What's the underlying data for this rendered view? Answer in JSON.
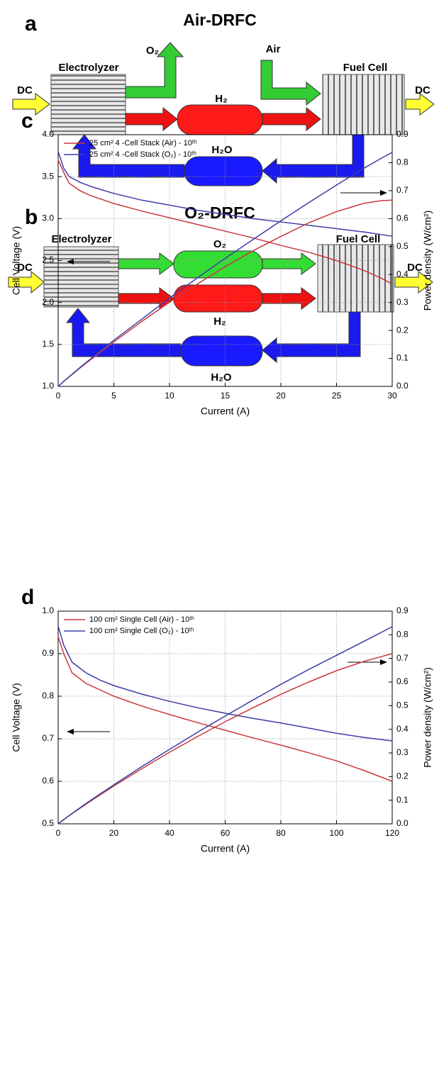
{
  "diagrams": [
    {
      "label": "a",
      "title": "Air-DRFC",
      "electrolyzer": "Electrolyzer",
      "fuel_cell": "Fuel Cell",
      "dc_in": "DC",
      "dc_out": "DC",
      "oxygen": "O₂",
      "air": "Air",
      "hydrogen": "H₂",
      "water": "H₂O"
    },
    {
      "label": "b",
      "title": "O₂-DRFC",
      "electrolyzer": "Electrolyzer",
      "fuel_cell": "Fuel Cell",
      "dc_in": "DC",
      "dc_out": "DC",
      "oxygen": "O₂",
      "hydrogen": "H₂",
      "water": "H₂O"
    }
  ],
  "chart_data": [
    {
      "type": "line",
      "label": "c",
      "x_label": "Current (A)",
      "y_label": "Cell Voltage (V)",
      "y2_label": "Power density (W/cm²)",
      "x": [
        0,
        0.5,
        1,
        2,
        3,
        5,
        7.5,
        10,
        12.5,
        15,
        17.5,
        20,
        22.5,
        25,
        27.5,
        29,
        30
      ],
      "xlim": [
        0,
        30
      ],
      "xticks": [
        0,
        5,
        10,
        15,
        20,
        25,
        30
      ],
      "ylim": [
        1,
        4
      ],
      "yticks": [
        {
          "value": 1,
          "label": "1.0"
        },
        1.5,
        {
          "value": 2,
          "label": "2.0"
        },
        2.5,
        {
          "value": 3,
          "label": "3.0"
        },
        3.5,
        {
          "value": 4,
          "label": "4.0"
        }
      ],
      "y2lim": [
        0,
        0.9
      ],
      "y2ticks": [
        {
          "value": 0,
          "label": "0.0"
        },
        0.1,
        0.2,
        0.3,
        0.4,
        0.5,
        0.6,
        0.7,
        0.8,
        0.9
      ],
      "grid": true,
      "legend": "upper left",
      "series": [
        {
          "name": "25 cm² 4 -Cell Stack (Air) - 10ᵗʰ",
          "color": "#c8383c",
          "values": [
            3.7,
            3.55,
            3.42,
            3.33,
            3.27,
            3.18,
            3.09,
            3.01,
            2.93,
            2.85,
            2.77,
            2.68,
            2.6,
            2.5,
            2.38,
            2.29,
            2.22
          ]
        },
        {
          "name": "25 cm² 4 -Cell Stack (O₂) - 10ᵗʰ",
          "color": "#3c3ca8",
          "values": [
            3.8,
            3.6,
            3.5,
            3.43,
            3.38,
            3.3,
            3.22,
            3.16,
            3.1,
            3.05,
            3.0,
            2.96,
            2.92,
            2.88,
            2.84,
            2.81,
            2.79
          ]
        },
        {
          "color": "#c8383c",
          "axis": "y2",
          "values": [
            0,
            0.018,
            0.034,
            0.067,
            0.098,
            0.159,
            0.232,
            0.301,
            0.366,
            0.428,
            0.485,
            0.536,
            0.585,
            0.625,
            0.655,
            0.664,
            0.666
          ]
        },
        {
          "color": "#3c3ca8",
          "axis": "y2",
          "values": [
            0,
            0.018,
            0.035,
            0.069,
            0.101,
            0.165,
            0.24,
            0.316,
            0.388,
            0.458,
            0.525,
            0.592,
            0.657,
            0.72,
            0.781,
            0.815,
            0.837
          ]
        }
      ]
    },
    {
      "type": "line",
      "label": "d",
      "x_label": "Current (A)",
      "y_label": "Cell Voltage (V)",
      "y2_label": "Power density (W/cm²)",
      "x": [
        0,
        2,
        5,
        10,
        15,
        20,
        30,
        40,
        50,
        60,
        70,
        80,
        90,
        100,
        110,
        120
      ],
      "xlim": [
        0,
        120
      ],
      "xticks": [
        0,
        20,
        40,
        60,
        80,
        100,
        120
      ],
      "ylim": [
        0.5,
        1
      ],
      "yticks": [
        0.5,
        0.6,
        0.7,
        0.8,
        0.9,
        {
          "value": 1,
          "label": "1.0"
        }
      ],
      "y2lim": [
        0,
        0.9
      ],
      "y2ticks": [
        {
          "value": 0,
          "label": "0.0"
        },
        0.1,
        0.2,
        0.3,
        0.4,
        0.5,
        0.6,
        0.7,
        0.8,
        0.9
      ],
      "grid": true,
      "legend": "upper left",
      "series": [
        {
          "name": "100 cm² Single Cell (Air) - 10ᵗʰ",
          "color": "#c8383c",
          "values": [
            0.94,
            0.9,
            0.855,
            0.83,
            0.815,
            0.8,
            0.777,
            0.757,
            0.738,
            0.72,
            0.702,
            0.685,
            0.667,
            0.648,
            0.625,
            0.6
          ]
        },
        {
          "name": "100 cm² Single Cell (O₂) - 10ᵗʰ",
          "color": "#3c3ca8",
          "values": [
            0.965,
            0.92,
            0.88,
            0.855,
            0.838,
            0.825,
            0.805,
            0.788,
            0.773,
            0.76,
            0.748,
            0.737,
            0.725,
            0.713,
            0.703,
            0.695
          ]
        },
        {
          "color": "#c8383c",
          "axis": "y2",
          "values": [
            0,
            0.018,
            0.043,
            0.083,
            0.122,
            0.16,
            0.233,
            0.303,
            0.369,
            0.432,
            0.491,
            0.548,
            0.6,
            0.648,
            0.688,
            0.72
          ]
        },
        {
          "color": "#3c3ca8",
          "axis": "y2",
          "values": [
            0,
            0.018,
            0.044,
            0.086,
            0.126,
            0.165,
            0.242,
            0.315,
            0.387,
            0.456,
            0.524,
            0.59,
            0.653,
            0.713,
            0.773,
            0.834
          ]
        }
      ]
    }
  ]
}
